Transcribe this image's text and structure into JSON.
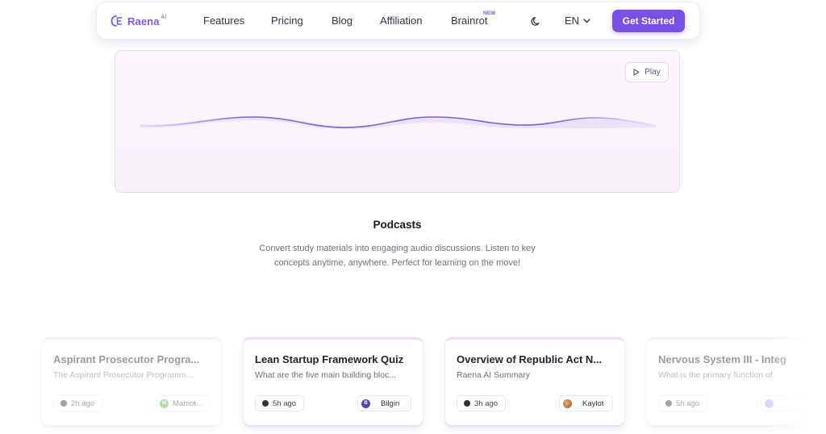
{
  "nav": {
    "logo_text": "Raena",
    "logo_sup": "AI",
    "links": [
      "Features",
      "Pricing",
      "Blog",
      "Affiliation",
      "Brainrot"
    ],
    "new_badge": "NEW",
    "lang": "EN",
    "cta": "Get Started",
    "accent_color": "#7a4fe6"
  },
  "player": {
    "play_label": "Play"
  },
  "section": {
    "title": "Podcasts",
    "description": "Convert study materials into engaging audio discussions. Listen to key concepts anytime, anywhere. Perfect for learning on the move!"
  },
  "cards": [
    {
      "title": "Aspirant Prosecutor Progra...",
      "subtitle": "The Aspirant Prosecutor Programm...",
      "time": "2h ago",
      "user": "Mamot...",
      "avatar": "M",
      "avatar_color": "#5cae4a"
    },
    {
      "title": "Lean Startup Framework Quiz",
      "subtitle": "What are the five main building bloc...",
      "time": "5h ago",
      "user": "Bilgin",
      "avatar": "B",
      "avatar_color": "#5a3fb8"
    },
    {
      "title": "Overview of Republic Act N...",
      "subtitle": "Raena AI Summary",
      "time": "3h ago",
      "user": "Kaylot",
      "avatar": "",
      "avatar_color": "#c07a3a"
    },
    {
      "title": "Nervous System III - Integ",
      "subtitle": "What is the primary function of",
      "time": "5h ago",
      "user": "",
      "avatar": "",
      "avatar_color": "#b9a8f0"
    }
  ]
}
